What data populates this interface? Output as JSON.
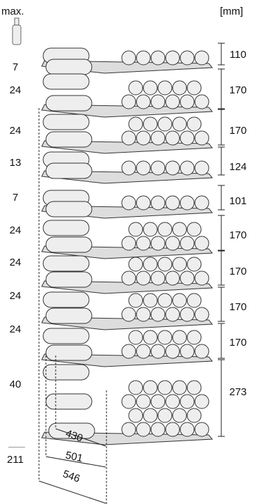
{
  "header": {
    "max_label": "max.",
    "unit_label": "[mm]"
  },
  "capacities": [
    "7",
    "24",
    "24",
    "13",
    "7",
    "24",
    "24",
    "24",
    "24",
    "40"
  ],
  "total": "211",
  "heights": [
    "110",
    "170",
    "170",
    "124",
    "101",
    "170",
    "170",
    "170",
    "170",
    "273"
  ],
  "depths": [
    "430",
    "501",
    "546"
  ],
  "icons": {
    "bottle": "bottle-icon"
  },
  "colors": {
    "line": "#222222",
    "bottle_fill": "#eeeeee",
    "shelf_fill": "#dddddd"
  }
}
